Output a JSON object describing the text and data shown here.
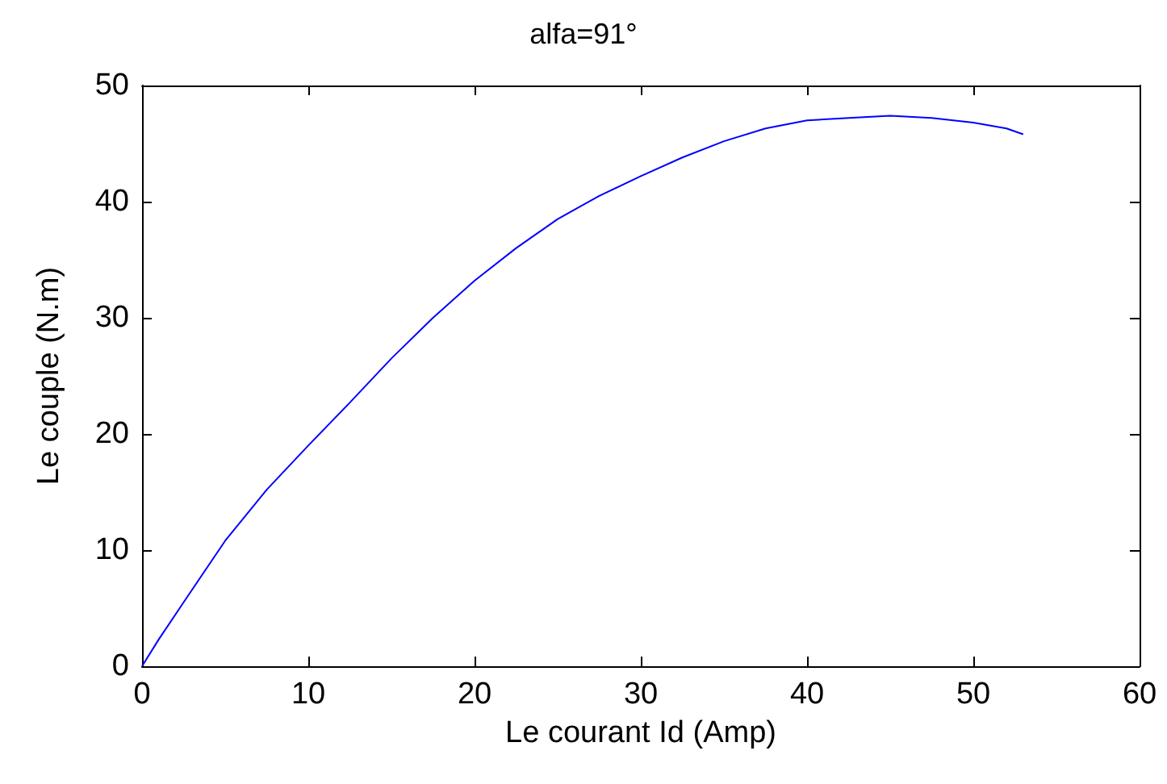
{
  "chart_data": {
    "type": "line",
    "title": "alfa=91°",
    "xlabel": "Le courant Id (Amp)",
    "ylabel": "Le couple (N.m)",
    "x": [
      0,
      1,
      2.5,
      5,
      7.5,
      10,
      12.5,
      15,
      17.5,
      20,
      22.5,
      25,
      27.5,
      30,
      32.5,
      35,
      37.5,
      40,
      42.5,
      45,
      47.5,
      50,
      52,
      53
    ],
    "series": [
      {
        "color": "#0000ff",
        "values": [
          0,
          2.3,
          5.5,
          10.8,
          15.2,
          19.0,
          22.7,
          26.5,
          30,
          33.2,
          36,
          38.5,
          40.5,
          42.2,
          43.8,
          45.2,
          46.3,
          47,
          47.2,
          47.4,
          47.2,
          46.8,
          46.3,
          45.8
        ]
      }
    ],
    "xlim": [
      0,
      60
    ],
    "xticks": [
      0,
      10,
      20,
      30,
      40,
      50,
      60
    ],
    "ylim": [
      0,
      50
    ],
    "yticks": [
      0,
      10,
      20,
      30,
      40,
      50
    ],
    "grid": false,
    "marker": "none",
    "line_style": "solid"
  }
}
